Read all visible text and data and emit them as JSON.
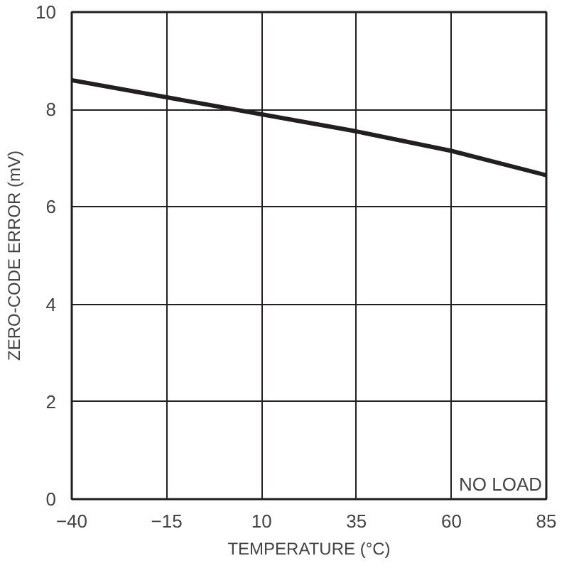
{
  "chart_data": {
    "type": "line",
    "xlabel": "TEMPERATURE (°C)",
    "ylabel": "ZERO-CODE ERROR (mV)",
    "annotations": [
      "NO LOAD"
    ],
    "x": [
      -40,
      -15,
      10,
      35,
      60,
      85
    ],
    "series": [
      {
        "color": "#231f20",
        "values": [
          8.6,
          8.25,
          7.9,
          7.55,
          7.15,
          6.65
        ]
      }
    ],
    "xlim": [
      -40,
      85
    ],
    "ylim": [
      0,
      10
    ],
    "xticks": [
      -40,
      -15,
      10,
      35,
      60,
      85
    ],
    "yticks": [
      0,
      2,
      4,
      6,
      8,
      10
    ],
    "grid": true,
    "line_style": "solid"
  }
}
